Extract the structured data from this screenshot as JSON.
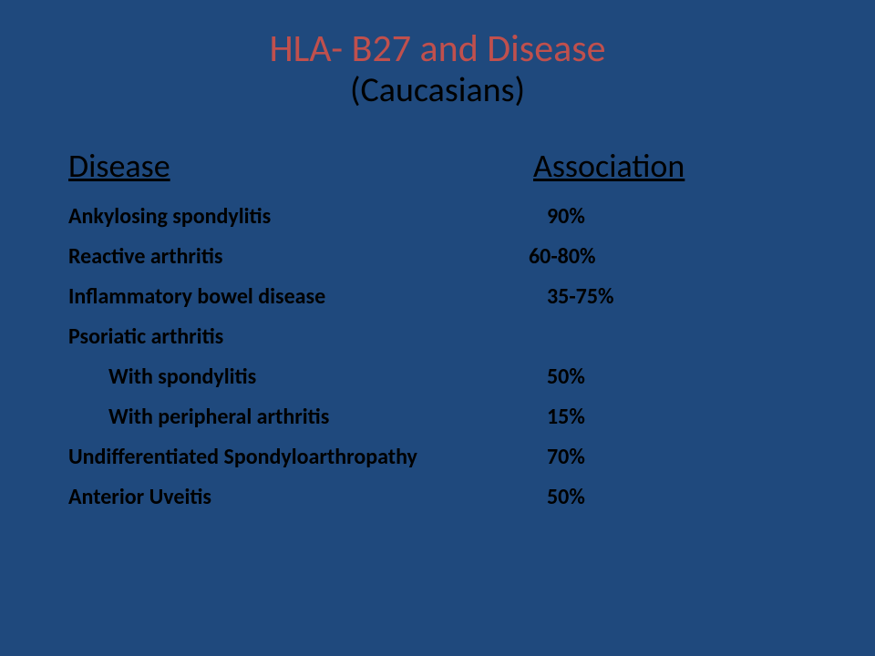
{
  "colors": {
    "background": "#1f497d",
    "title_accent": "#c0504d",
    "text": "#000000"
  },
  "typography": {
    "title_fontsize_pt": 42,
    "subtitle_fontsize_pt": 38,
    "header_fontsize_pt": 36,
    "row_fontsize_pt": 24,
    "row_weight": "bold"
  },
  "title": {
    "line1": "HLA- B27 and Disease",
    "line2": "(Caucasians)"
  },
  "headers": {
    "disease": "Disease",
    "association": "Association"
  },
  "rows": [
    {
      "disease": "Ankylosing spondylitis",
      "association": "90%",
      "indent": false
    },
    {
      "disease": "Reactive arthritis",
      "association": "60-80%",
      "indent": false
    },
    {
      "disease": "Inflammatory bowel disease",
      "association": "35-75%",
      "indent": false
    },
    {
      "disease": "Psoriatic arthritis",
      "association": "",
      "indent": false
    },
    {
      "disease": "With spondylitis",
      "association": "50%",
      "indent": true
    },
    {
      "disease": "With peripheral arthritis",
      "association": "15%",
      "indent": true
    },
    {
      "disease": "Undifferentiated Spondyloarthropathy",
      "association": "70%",
      "indent": false
    },
    {
      "disease": "Anterior Uveitis",
      "association": "50%",
      "indent": false
    }
  ]
}
